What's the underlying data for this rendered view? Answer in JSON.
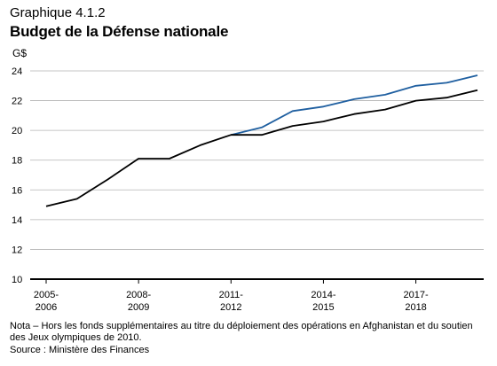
{
  "header": {
    "graphique": "Graphique 4.1.2",
    "title": "Budget de la Défense nationale",
    "unit": "G$"
  },
  "footer": {
    "note": "Nota – Hors les fonds supplémentaires au titre du déploiement des opérations en Afghanistan et du soutien des Jeux olympiques de 2010.",
    "source": "Source : Ministère des Finances"
  },
  "colors": {
    "black_series": "#000000",
    "blue_series": "#1f5fa0",
    "gridline": "#b3b3b3"
  },
  "chart_data": {
    "type": "line",
    "title": "Budget de la Défense nationale",
    "ylabel": "G$",
    "xlabel": "",
    "ylim": [
      10,
      24
    ],
    "yticks": [
      10,
      12,
      14,
      16,
      18,
      20,
      22,
      24
    ],
    "grid": true,
    "x": [
      "2005-2006",
      "2006-2007",
      "2007-2008",
      "2008-2009",
      "2009-2010",
      "2010-2011",
      "2011-2012",
      "2012-2013",
      "2013-2014",
      "2014-2015",
      "2015-2016",
      "2016-2017",
      "2017-2018",
      "2018-2019",
      "2019-2020"
    ],
    "xtick_labels": [
      {
        "index": 0,
        "line1": "2005-",
        "line2": "2006"
      },
      {
        "index": 3,
        "line1": "2008-",
        "line2": "2009"
      },
      {
        "index": 6,
        "line1": "2011-",
        "line2": "2012"
      },
      {
        "index": 9,
        "line1": "2014-",
        "line2": "2015"
      },
      {
        "index": 12,
        "line1": "2017-",
        "line2": "2018"
      }
    ],
    "series": [
      {
        "color": "#000000",
        "values": [
          14.9,
          15.4,
          16.7,
          18.1,
          18.1,
          19.0,
          19.7,
          19.7,
          20.3,
          20.6,
          21.1,
          21.4,
          22.0,
          22.2,
          22.7
        ]
      },
      {
        "color": "#1f5fa0",
        "values": [
          null,
          null,
          null,
          null,
          null,
          null,
          19.7,
          20.2,
          21.3,
          21.6,
          22.1,
          22.4,
          23.0,
          23.2,
          23.7
        ]
      }
    ]
  }
}
